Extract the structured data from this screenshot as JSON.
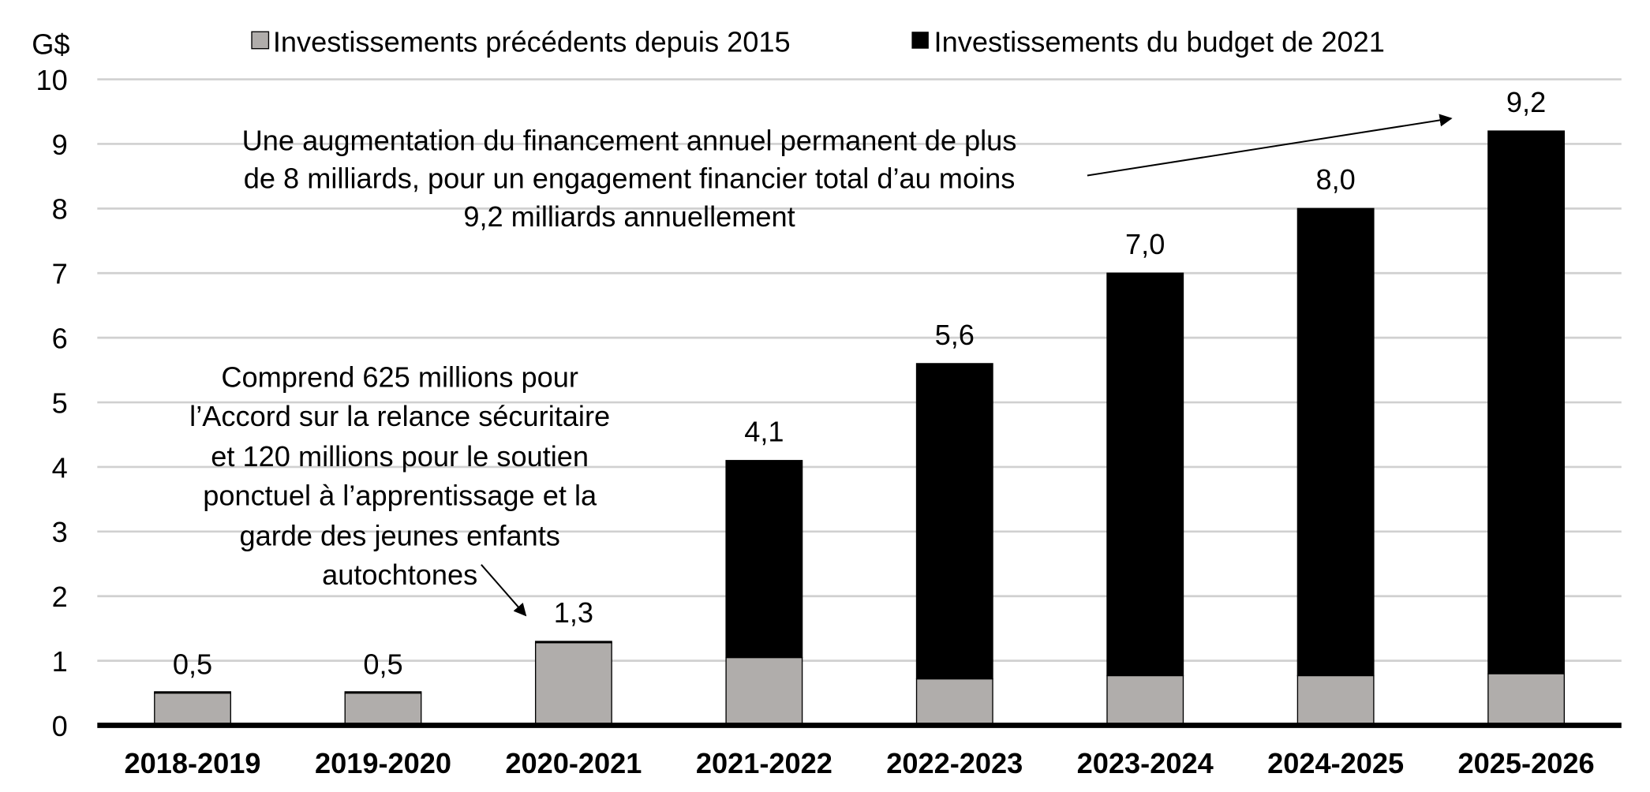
{
  "chart_data": {
    "type": "bar",
    "stacked": true,
    "ylabel": "G$",
    "ylim": [
      0,
      10
    ],
    "yticks": [
      "0",
      "1",
      "2",
      "3",
      "4",
      "5",
      "6",
      "7",
      "8",
      "9",
      "10"
    ],
    "grid": true,
    "legend_placement": "top",
    "categories": [
      "2018-2019",
      "2019-2020",
      "2020-2021",
      "2021-2022",
      "2022-2023",
      "2023-2024",
      "2024-2025",
      "2025-2026"
    ],
    "series": [
      {
        "name": "Investissements précédents depuis 2015",
        "color": "#b0adab",
        "values": [
          0.5,
          0.5,
          1.28,
          1.05,
          0.72,
          0.77,
          0.77,
          0.8
        ]
      },
      {
        "name": "Investissements du budget de 2021",
        "color": "#000000",
        "values": [
          0.02,
          0.02,
          0.02,
          3.05,
          4.88,
          6.23,
          7.23,
          8.4
        ]
      }
    ],
    "totals": [
      0.5,
      0.5,
      1.3,
      4.1,
      5.6,
      7.0,
      8.0,
      9.2
    ],
    "total_labels": [
      "0,5",
      "0,5",
      "1,3",
      "4,1",
      "5,6",
      "7,0",
      "8,0",
      "9,2"
    ],
    "annotations": [
      {
        "lines": [
          "Une augmentation du financement annuel permanent de plus",
          "de 8 milliards, pour un engagement financier total d’au moins",
          "9,2 milliards annuellement"
        ],
        "points_to": "2025-2026"
      },
      {
        "lines": [
          "Comprend 625 millions pour",
          "l’Accord sur la relance sécuritaire",
          "et 120 millions pour le soutien",
          "ponctuel à l’apprentissage et la",
          "garde des jeunes enfants",
          "autochtones"
        ],
        "points_to": "2020-2021"
      }
    ]
  }
}
